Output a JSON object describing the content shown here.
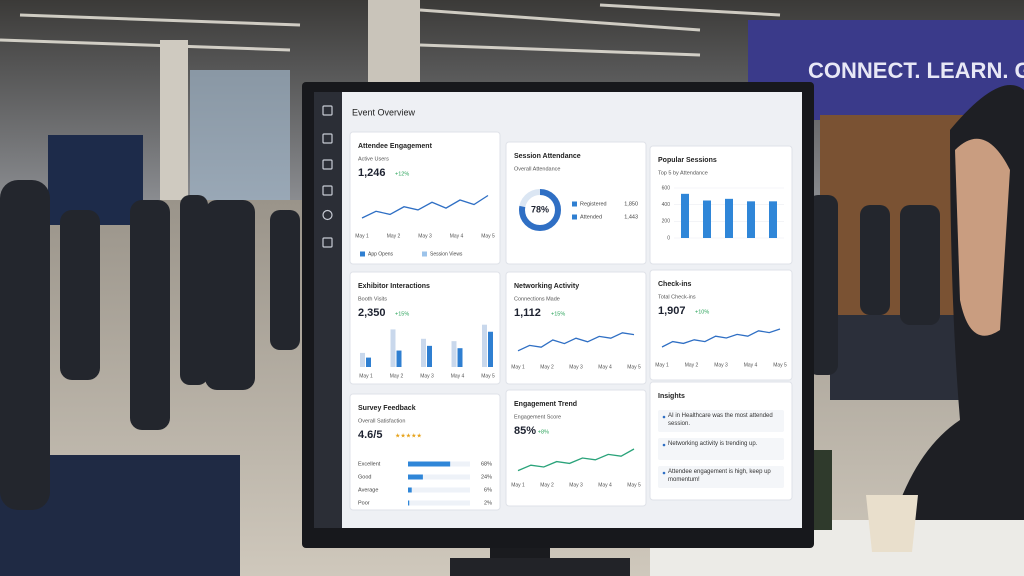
{
  "banner": "CONNECT. LEARN. GI",
  "screen": {
    "title": "Event Overview",
    "panels": [
      {
        "type": "line",
        "title": "Attendee Engagement",
        "subtitle": "Active Users",
        "value": "1,246",
        "change": "+12%",
        "color": "#2f6fc4",
        "categories": [
          "May 1",
          "May 2",
          "May 3",
          "May 4",
          "May 5"
        ],
        "ylim": [
          0,
          100
        ],
        "values": [
          20,
          35,
          28,
          45,
          38,
          55,
          42,
          60,
          50,
          70
        ],
        "legend": [
          {
            "name": "App Opens",
            "color": "#2f7fd1"
          },
          {
            "name": "Session Views",
            "color": "#9cc3ea"
          }
        ]
      },
      {
        "type": "donut",
        "title": "Session Attendance",
        "subtitle": "Overall Attendance",
        "percent": 78,
        "percent_label": "78%",
        "color": "#2f6fc4",
        "legend": [
          {
            "name": "Registered",
            "value": "1,850",
            "color": "#2f7fd1"
          },
          {
            "name": "Attended",
            "value": "1,443",
            "color": "#2f7fd1"
          }
        ]
      },
      {
        "type": "bar",
        "title": "Popular Sessions",
        "subtitle": "Top 5 by Attendance",
        "color": "#2f86d8",
        "ylim": [
          0,
          600
        ],
        "yticks": [
          0,
          200,
          400,
          600
        ],
        "values": [
          530,
          450,
          470,
          440,
          440
        ]
      },
      {
        "type": "grouped-bar",
        "title": "Exhibitor Interactions",
        "subtitle": "Booth Visits",
        "value": "2,350",
        "change": "+15%",
        "categories": [
          "May 1",
          "May 2",
          "May 3",
          "May 4",
          "May 5"
        ],
        "ylim": [
          0,
          100
        ],
        "series": [
          {
            "name": null,
            "color": "#c9d8ec",
            "values": [
              30,
              80,
              60,
              55,
              90
            ]
          },
          {
            "name": null,
            "color": "#2f7fd1",
            "values": [
              20,
              35,
              45,
              40,
              75
            ]
          }
        ]
      },
      {
        "type": "line",
        "title": "Networking Activity",
        "subtitle": "Connections Made",
        "value": "1,112",
        "change": "+15%",
        "color": "#2f6fc4",
        "categories": [
          "May 1",
          "May 2",
          "May 3",
          "May 4",
          "May 5"
        ],
        "ylim": [
          0,
          100
        ],
        "values": [
          20,
          35,
          30,
          50,
          40,
          55,
          45,
          60,
          55,
          70,
          65
        ]
      },
      {
        "type": "line",
        "title": "Check-ins",
        "subtitle": "Total Check-ins",
        "value": "1,907",
        "change": "+10%",
        "color": "#2f6fc4",
        "categories": [
          "May 1",
          "May 2",
          "May 3",
          "May 4",
          "May 5"
        ],
        "ylim": [
          0,
          100
        ],
        "values": [
          25,
          40,
          35,
          45,
          40,
          55,
          50,
          60,
          55,
          70,
          65,
          75
        ]
      },
      {
        "type": "hbar",
        "title": "Survey Feedback",
        "subtitle": "Overall Satisfaction",
        "value": "4.6/5",
        "stars": "★★★★★",
        "color": "#2f86d8",
        "categories": [
          "Excellent",
          "Good",
          "Average",
          "Poor"
        ],
        "values": [
          68,
          24,
          6,
          2
        ],
        "value_labels": [
          "68%",
          "24%",
          "6%",
          "2%"
        ],
        "xlim": [
          0,
          100
        ]
      },
      {
        "type": "line",
        "title": "Engagement Trend",
        "subtitle": "Engagement Score",
        "value": "85%",
        "change": "+8%",
        "color": "#2aa37a",
        "categories": [
          "May 1",
          "May 2",
          "May 3",
          "May 4",
          "May 5"
        ],
        "ylim": [
          0,
          100
        ],
        "values": [
          15,
          30,
          25,
          40,
          35,
          50,
          45,
          60,
          55,
          75
        ]
      },
      {
        "type": "list",
        "title": "Insights",
        "items": [
          "AI in Healthcare was the most attended session.",
          "Networking activity is trending up.",
          "Attendee engagement is high, keep up momentum!"
        ]
      }
    ]
  }
}
